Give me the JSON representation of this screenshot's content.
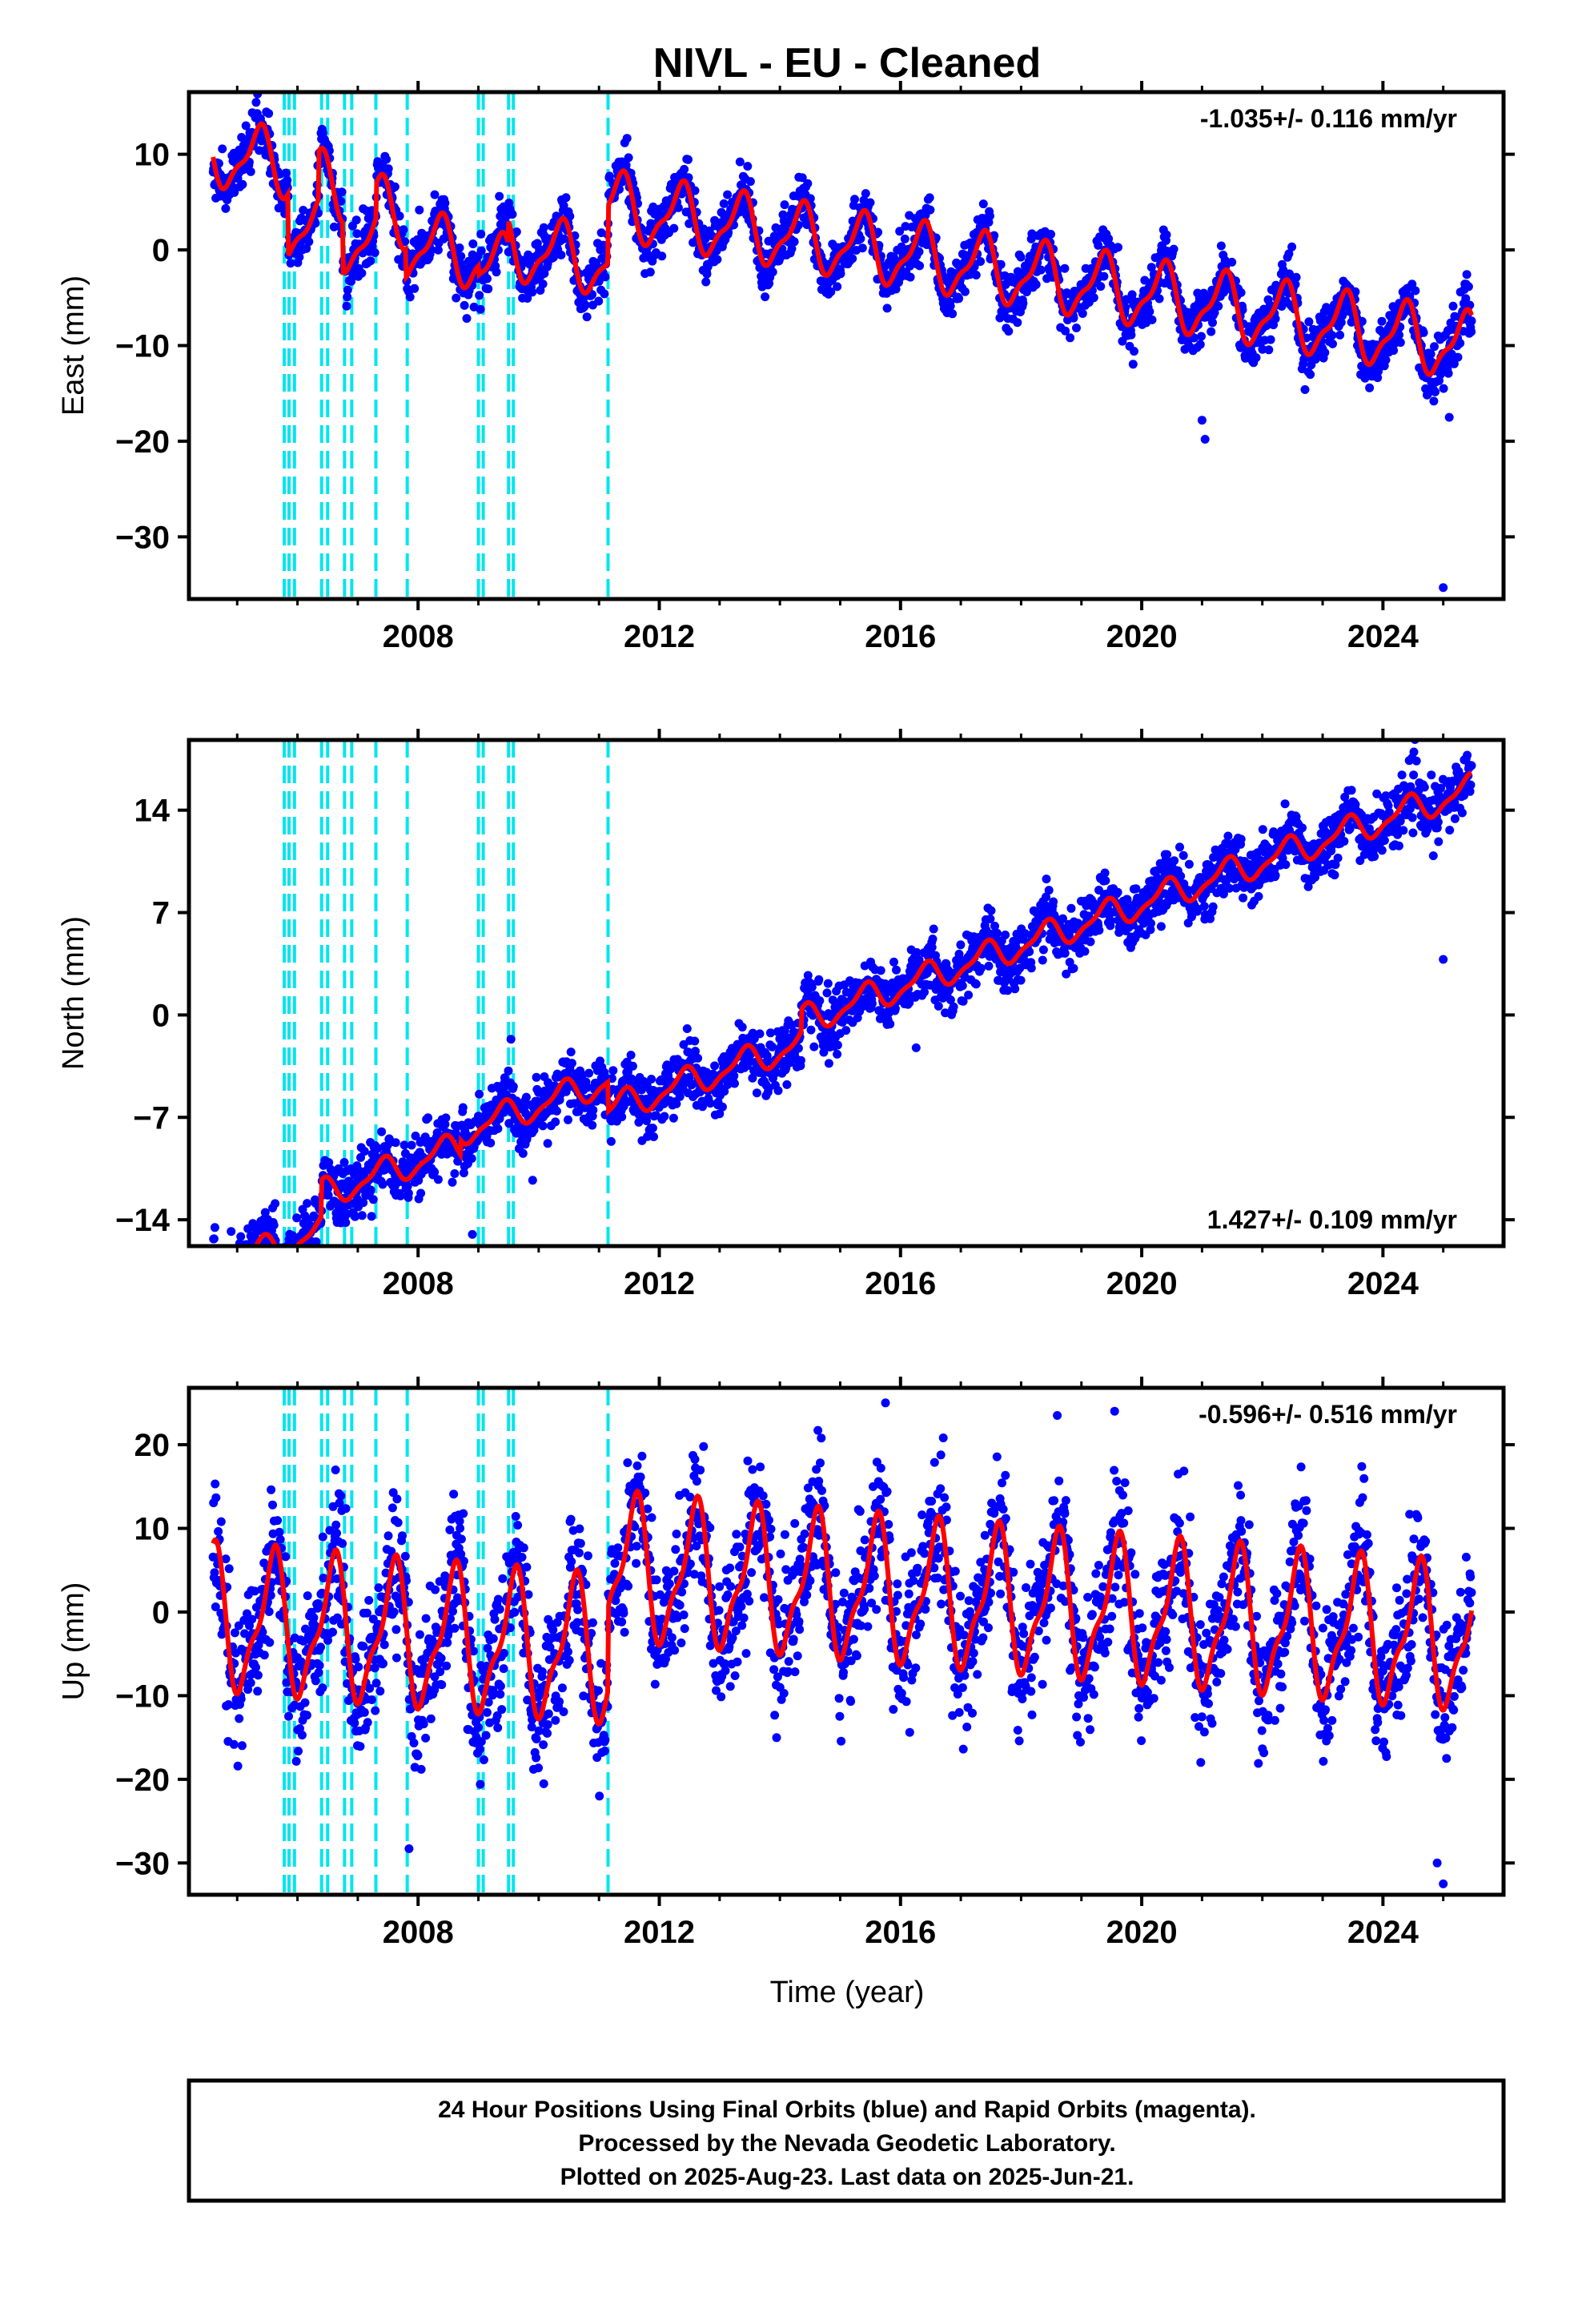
{
  "title": "NIVL  - EU - Cleaned",
  "colors": {
    "points": "#0000ff",
    "model": "#ff0000",
    "events": "#00e5ee",
    "frame": "#000000"
  },
  "chart_data": [
    {
      "type": "scatter",
      "ylabel": "East (mm)",
      "rate_text": "-1.035+/- 0.116 mm/yr",
      "rate_position": "top-right",
      "x_ticks": [
        "2008",
        "2012",
        "2016",
        "2020",
        "2024"
      ],
      "y_ticks": [
        "10",
        "0",
        "−10",
        "−20",
        "−30"
      ],
      "y_tick_values": [
        10,
        0,
        -10,
        -20,
        -30
      ],
      "ylim": [
        -36.5,
        16.5
      ],
      "xlim": [
        2004.2,
        2026.0
      ],
      "data_span": [
        2004.6,
        2025.47
      ],
      "series": [
        {
          "type": "scatter",
          "color": "#0000ff"
        },
        {
          "type": "line",
          "color": "#ff0000",
          "model": {
            "ref_year": 2015.0,
            "offset_at_ref": 0.6,
            "slope_mm_per_yr": -1.035,
            "annual_amp": 3.2,
            "annual_phase_year": 0.35,
            "noise": 1.4,
            "offsets": [
              [
                2005.85,
                -6.5
              ],
              [
                2006.35,
                5.0
              ],
              [
                2006.75,
                -5.2
              ],
              [
                2007.3,
                3.5
              ],
              [
                2007.8,
                -3.0
              ],
              [
                2009.0,
                -1.0
              ],
              [
                2009.5,
                2.5
              ],
              [
                2011.15,
                6.0
              ]
            ]
          }
        }
      ],
      "outliers": [
        [
          2021.0,
          -17.8
        ],
        [
          2021.05,
          -19.8
        ],
        [
          2025.0,
          -35.3
        ],
        [
          2025.1,
          -17.5
        ],
        [
          2010.8,
          -7.0
        ]
      ]
    },
    {
      "type": "scatter",
      "ylabel": "North (mm)",
      "rate_text": "1.427+/- 0.109 mm/yr",
      "rate_position": "bottom-right",
      "x_ticks": [
        "2008",
        "2012",
        "2016",
        "2020",
        "2024"
      ],
      "y_ticks": [
        "14",
        "7",
        "0",
        "−7",
        "−14"
      ],
      "y_tick_values": [
        14,
        7,
        0,
        -7,
        -14
      ],
      "ylim": [
        -15.8,
        18.8
      ],
      "xlim": [
        2004.2,
        2026.0
      ],
      "data_span": [
        2004.6,
        2025.47
      ],
      "series": [
        {
          "type": "scatter",
          "color": "#0000ff"
        },
        {
          "type": "line",
          "color": "#ff0000",
          "model": {
            "ref_year": 2015.0,
            "offset_at_ref": 0.5,
            "slope_mm_per_yr": 1.427,
            "annual_amp": 0.9,
            "annual_phase_year": 0.4,
            "noise": 1.0,
            "offsets": [
              [
                2006.4,
                2.5
              ],
              [
                2008.7,
                1.0
              ],
              [
                2011.15,
                -2.0
              ],
              [
                2014.35,
                1.5
              ]
            ]
          }
        }
      ],
      "outliers": [
        [
          2025.0,
          3.8
        ],
        [
          2008.9,
          -15.0
        ],
        [
          2009.9,
          -11.3
        ],
        [
          2004.9,
          -14.8
        ]
      ]
    },
    {
      "type": "scatter",
      "ylabel": "Up (mm)",
      "xlabel": "Time (year)",
      "rate_text": "-0.596+/- 0.516 mm/yr",
      "rate_position": "top-right",
      "x_ticks": [
        "2008",
        "2012",
        "2016",
        "2020",
        "2024"
      ],
      "y_ticks": [
        "20",
        "10",
        "0",
        "−10",
        "−20",
        "−30"
      ],
      "y_tick_values": [
        20,
        10,
        0,
        -10,
        -20,
        -30
      ],
      "ylim": [
        -33.8,
        26.8
      ],
      "xlim": [
        2004.2,
        2026.0
      ],
      "data_span": [
        2004.6,
        2025.47
      ],
      "series": [
        {
          "type": "scatter",
          "color": "#0000ff"
        },
        {
          "type": "line",
          "color": "#ff0000",
          "model": {
            "ref_year": 2015.0,
            "offset_at_ref": 2.8,
            "slope_mm_per_yr": -0.596,
            "annual_amp": 7.8,
            "annual_phase_year": 0.58,
            "noise": 4.0,
            "offsets": [
              [
                2011.15,
                10.0
              ]
            ]
          }
        }
      ],
      "outliers": [
        [
          2015.75,
          25.0
        ],
        [
          2019.55,
          24.0
        ],
        [
          2025.0,
          -32.5
        ],
        [
          2007.85,
          -28.3
        ],
        [
          2018.6,
          23.5
        ],
        [
          2024.9,
          -30.0
        ]
      ]
    }
  ],
  "events": [
    2005.78,
    2005.86,
    2005.95,
    2006.4,
    2006.5,
    2006.78,
    2006.9,
    2007.3,
    2007.82,
    2009.0,
    2009.08,
    2009.5,
    2009.58,
    2011.15
  ],
  "footer": {
    "line1": "24 Hour Positions Using Final Orbits (blue) and Rapid Orbits (magenta).",
    "line2": "Processed by the Nevada Geodetic Laboratory.",
    "line3": "Plotted on 2025-Aug-23. Last data on 2025-Jun-21."
  }
}
